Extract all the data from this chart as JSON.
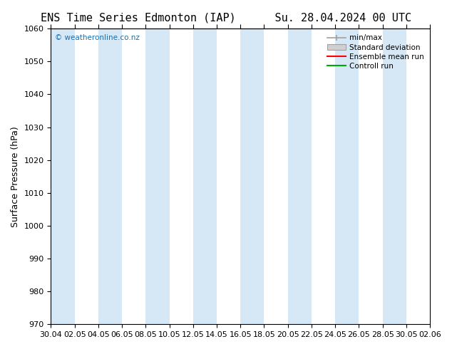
{
  "title_left": "ENS Time Series Edmonton (IAP)",
  "title_right": "Su. 28.04.2024 00 UTC",
  "ylabel": "Surface Pressure (hPa)",
  "ylim": [
    970,
    1060
  ],
  "yticks": [
    970,
    980,
    990,
    1000,
    1010,
    1020,
    1030,
    1040,
    1050,
    1060
  ],
  "xtick_labels": [
    "30.04",
    "02.05",
    "04.05",
    "06.05",
    "08.05",
    "10.05",
    "12.05",
    "14.05",
    "16.05",
    "18.05",
    "20.05",
    "22.05",
    "24.05",
    "26.05",
    "28.05",
    "30.05",
    "02.06"
  ],
  "bg_color": "#ffffff",
  "band_color": "#d6e8f5",
  "band_color2": "#ffffff",
  "watermark": "© weatheronline.co.nz",
  "watermark_color": "#1a6faf",
  "legend_entries": [
    "min/max",
    "Standard deviation",
    "Ensemble mean run",
    "Controll run"
  ],
  "legend_colors": [
    "#a0a0a0",
    "#c0c0c0",
    "#ff0000",
    "#00aa00"
  ],
  "title_fontsize": 11,
  "tick_fontsize": 8,
  "ylabel_fontsize": 9
}
